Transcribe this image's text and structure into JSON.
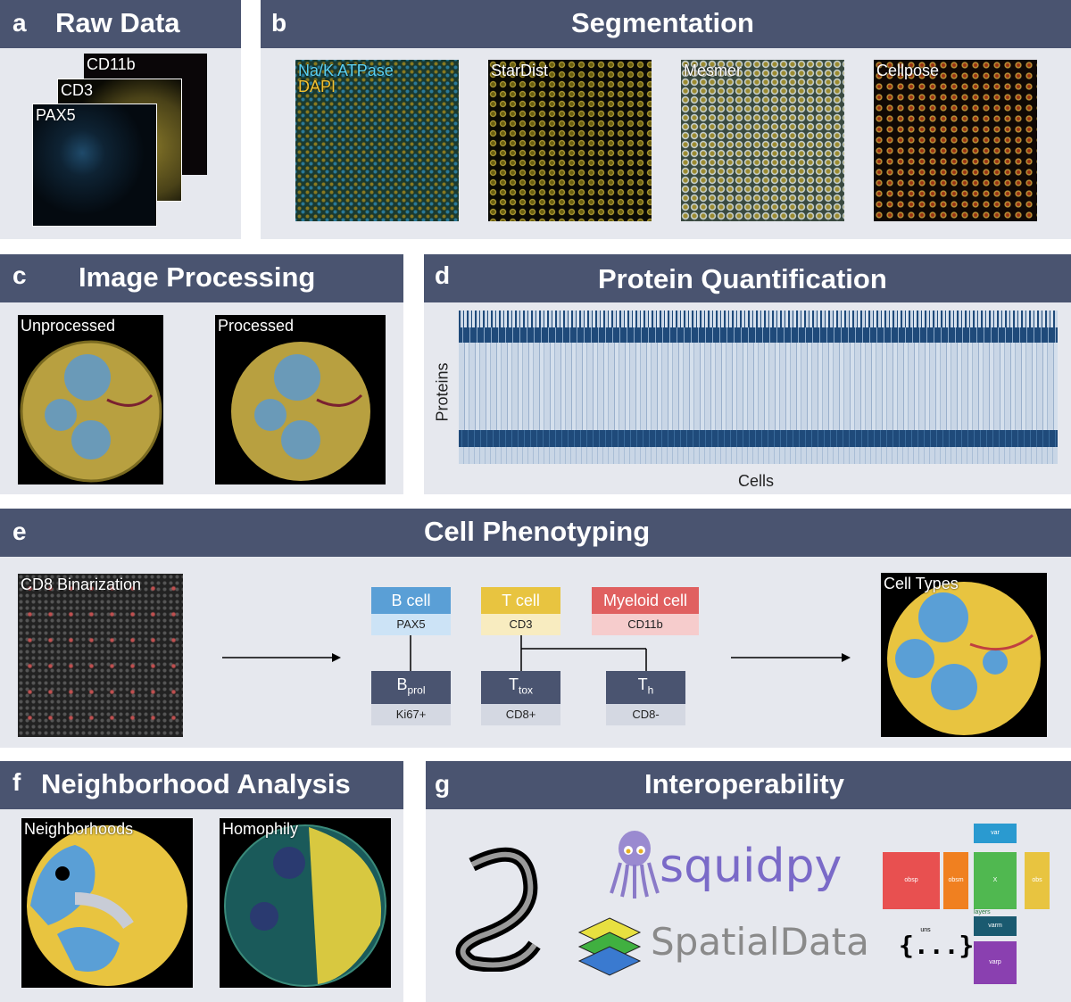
{
  "panels": {
    "a": {
      "letter": "a",
      "title": "Raw Data",
      "stack_labels": [
        "CD11b",
        "CD3",
        "PAX5"
      ]
    },
    "b": {
      "letter": "b",
      "title": "Segmentation",
      "images": [
        {
          "label_line1": "Na/K ATPase",
          "label_line2": "DAPI"
        },
        {
          "label": "StarDist"
        },
        {
          "label": "Mesmer"
        },
        {
          "label": "Cellpose"
        }
      ]
    },
    "c": {
      "letter": "c",
      "title": "Image Processing",
      "images": [
        "Unprocessed",
        "Processed"
      ]
    },
    "d": {
      "letter": "d",
      "title": "Protein Quantification",
      "ylabel": "Proteins",
      "xlabel": "Cells"
    },
    "e": {
      "letter": "e",
      "title": "Cell Phenotyping",
      "left_image": "CD8 Binarization",
      "right_image": "Cell Types",
      "hierarchy": {
        "b_cell": {
          "name": "B cell",
          "marker": "PAX5"
        },
        "t_cell": {
          "name": "T cell",
          "marker": "CD3"
        },
        "myeloid": {
          "name": "Myeloid cell",
          "marker": "CD11b"
        },
        "bprol": {
          "name": "B",
          "sub": "prol",
          "marker": "Ki67+"
        },
        "ttox": {
          "name": "T",
          "sub": "tox",
          "marker": "CD8+"
        },
        "th": {
          "name": "T",
          "sub": "h",
          "marker": "CD8-"
        }
      }
    },
    "f": {
      "letter": "f",
      "title": "Neighborhood Analysis",
      "images": [
        "Neighborhoods",
        "Homophily"
      ]
    },
    "g": {
      "letter": "g",
      "title": "Interoperability",
      "squidpy": "squidpy",
      "spatialdata": "SpatialData",
      "anndata": {
        "var": "var",
        "obsp": "obsp",
        "obsm": "obsm",
        "x": "X",
        "obs": "obs",
        "layers": "layers",
        "varm": "varm",
        "varp": "varp",
        "uns": "uns",
        "braces": "{...}"
      }
    }
  },
  "colors": {
    "header": "#4a5470",
    "panel_bg": "#e6e8ee",
    "b_cell": "#5a9fd6",
    "t_cell": "#e8c440",
    "myeloid": "#e06060",
    "heat_dark": "#1f4a7a"
  }
}
